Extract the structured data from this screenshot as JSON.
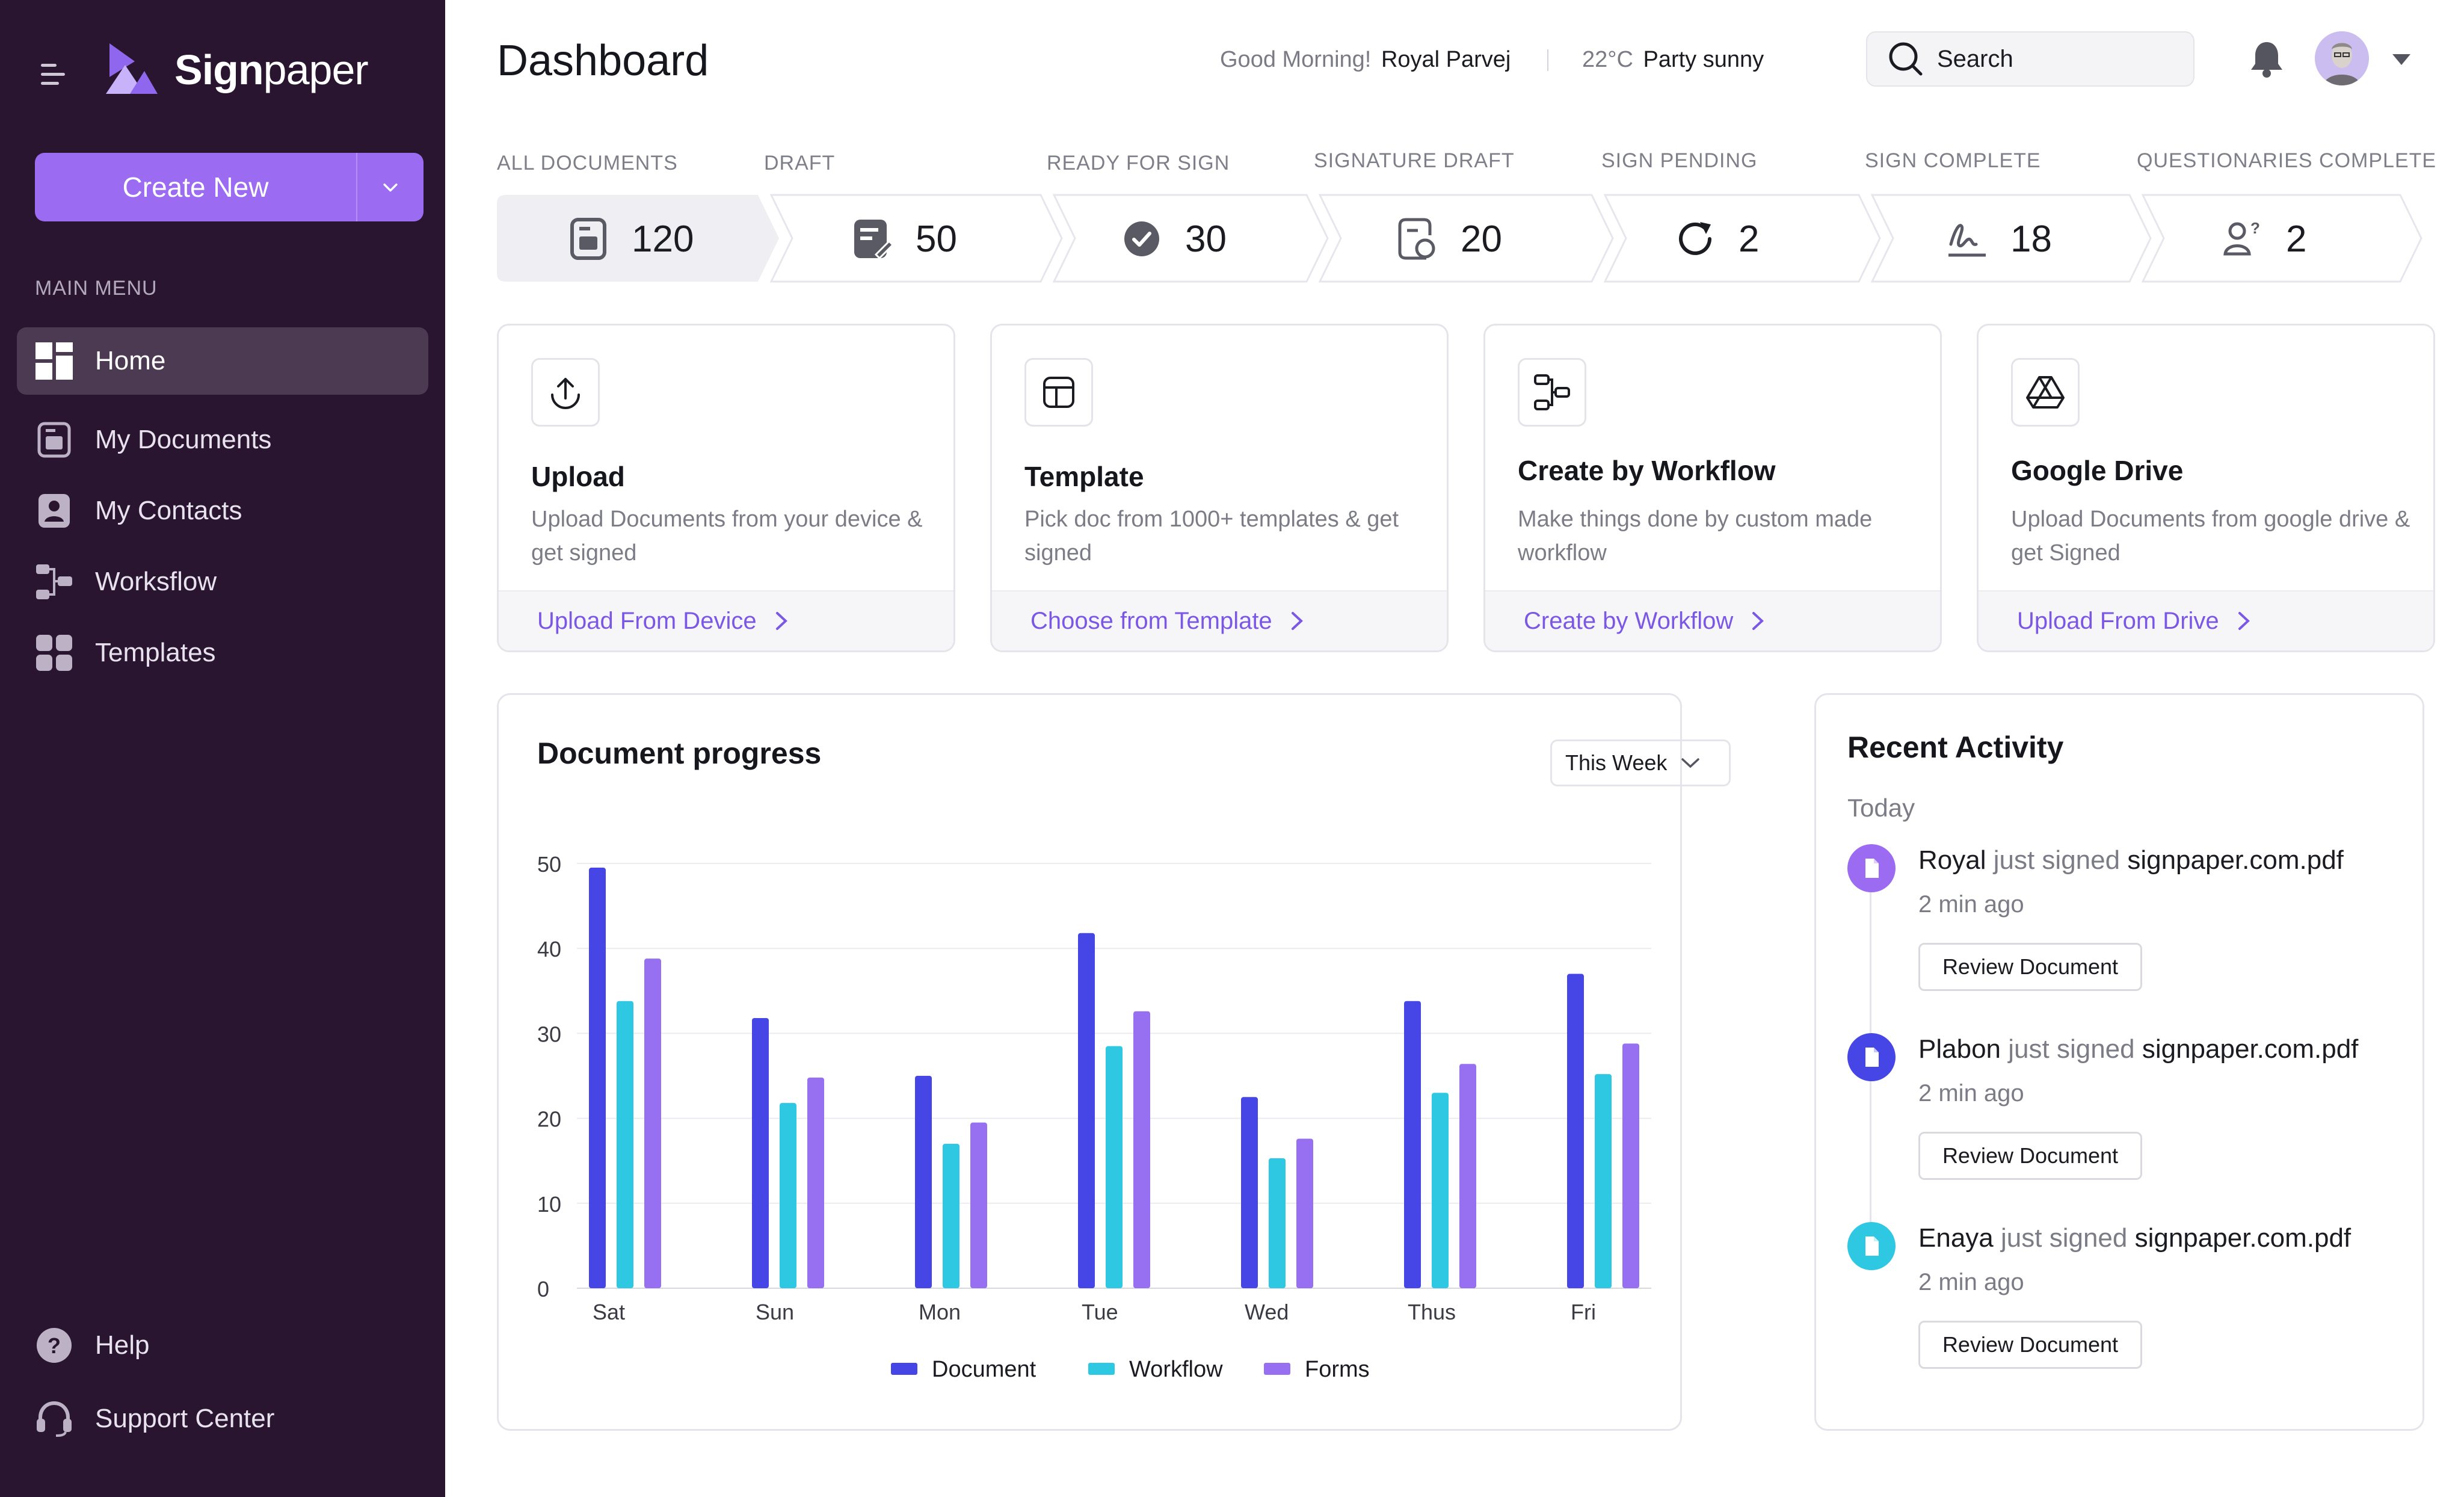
{
  "app": {
    "brand_bold": "Sign",
    "brand_light": "paper"
  },
  "sidebar": {
    "create_label": "Create New",
    "menu_title": "MAIN MENU",
    "items": [
      {
        "label": "Home",
        "icon": "grid-icon"
      },
      {
        "label": "My Documents",
        "icon": "document-icon"
      },
      {
        "label": "My Contacts",
        "icon": "contact-icon"
      },
      {
        "label": "Worksflow",
        "icon": "workflow-icon"
      },
      {
        "label": "Templates",
        "icon": "templates-icon"
      }
    ],
    "bottom": [
      {
        "label": "Help",
        "icon": "help-icon"
      },
      {
        "label": "Support Center",
        "icon": "headset-icon"
      }
    ]
  },
  "header": {
    "title": "Dashboard",
    "greeting": "Good Morning!",
    "user_name": "Royal Parvej",
    "temperature": "22°C",
    "condition": "Party sunny",
    "search_placeholder": "Search"
  },
  "statuses": [
    {
      "label": "ALL DOCUMENTS",
      "count": "120",
      "icon": "document-icon"
    },
    {
      "label": "DRAFT",
      "count": "50",
      "icon": "draft-icon"
    },
    {
      "label": "READY FOR SIGN",
      "count": "30",
      "icon": "check-circle-icon"
    },
    {
      "label": "SIGNATURE DRAFT",
      "count": "20",
      "icon": "signature-draft-icon"
    },
    {
      "label": "SIGN PENDING",
      "count": "2",
      "icon": "refresh-icon"
    },
    {
      "label": "SIGN COMPLETE",
      "count": "18",
      "icon": "signature-icon"
    },
    {
      "label": "QUESTIONARIES COMPLETE",
      "count": "2",
      "icon": "user-question-icon"
    }
  ],
  "cards": [
    {
      "title": "Upload",
      "desc": "Upload Documents from your device & get signed",
      "action": "Upload From Device",
      "icon": "upload-icon"
    },
    {
      "title": "Template",
      "desc": "Pick doc from 1000+ templates & get signed",
      "action": "Choose from Template",
      "icon": "template-icon"
    },
    {
      "title": "Create by Workflow",
      "desc": "Make things done by custom made workflow",
      "action": "Create by Workflow",
      "icon": "workflow-icon"
    },
    {
      "title": "Google Drive",
      "desc": "Upload Documents from google drive & get Signed",
      "action": "Upload From Drive",
      "icon": "google-drive-icon"
    }
  ],
  "chart_panel": {
    "title": "Document progress",
    "period": "This Week"
  },
  "chart_data": {
    "type": "bar",
    "categories": [
      "Sat",
      "Sun",
      "Mon",
      "Tue",
      "Wed",
      "Thus",
      "Fri"
    ],
    "series": [
      {
        "name": "Document",
        "values": [
          49.5,
          31.8,
          25,
          41.8,
          22.5,
          33.8,
          37
        ],
        "color": "#4646e6"
      },
      {
        "name": "Workflow",
        "values": [
          33.8,
          21.8,
          17,
          28.5,
          15.3,
          23,
          25.2
        ],
        "color": "#2fc8e3"
      },
      {
        "name": "Forms",
        "values": [
          38.8,
          24.8,
          19.5,
          32.6,
          17.6,
          26.4,
          28.8
        ],
        "color": "#9670f0"
      }
    ],
    "ylim": [
      0,
      50
    ],
    "yticks": [
      "0",
      "10",
      "20",
      "30",
      "40",
      "50"
    ],
    "grid": true,
    "legend": "bottom"
  },
  "activity": {
    "title": "Recent Activity",
    "day": "Today",
    "items": [
      {
        "who": "Royal",
        "verb": "just signed",
        "file": "signpaper.com.pdf",
        "time": "2 min ago",
        "button": "Review Document",
        "color": "#9b6bf2"
      },
      {
        "who": "Plabon",
        "verb": "just signed",
        "file": "signpaper.com.pdf",
        "time": "2 min ago",
        "button": "Review Document",
        "color": "#4646e6"
      },
      {
        "who": "Enaya",
        "verb": "just signed",
        "file": "signpaper.com.pdf",
        "time": "2 min ago",
        "button": "Review Document",
        "color": "#2fc8e3"
      }
    ]
  }
}
